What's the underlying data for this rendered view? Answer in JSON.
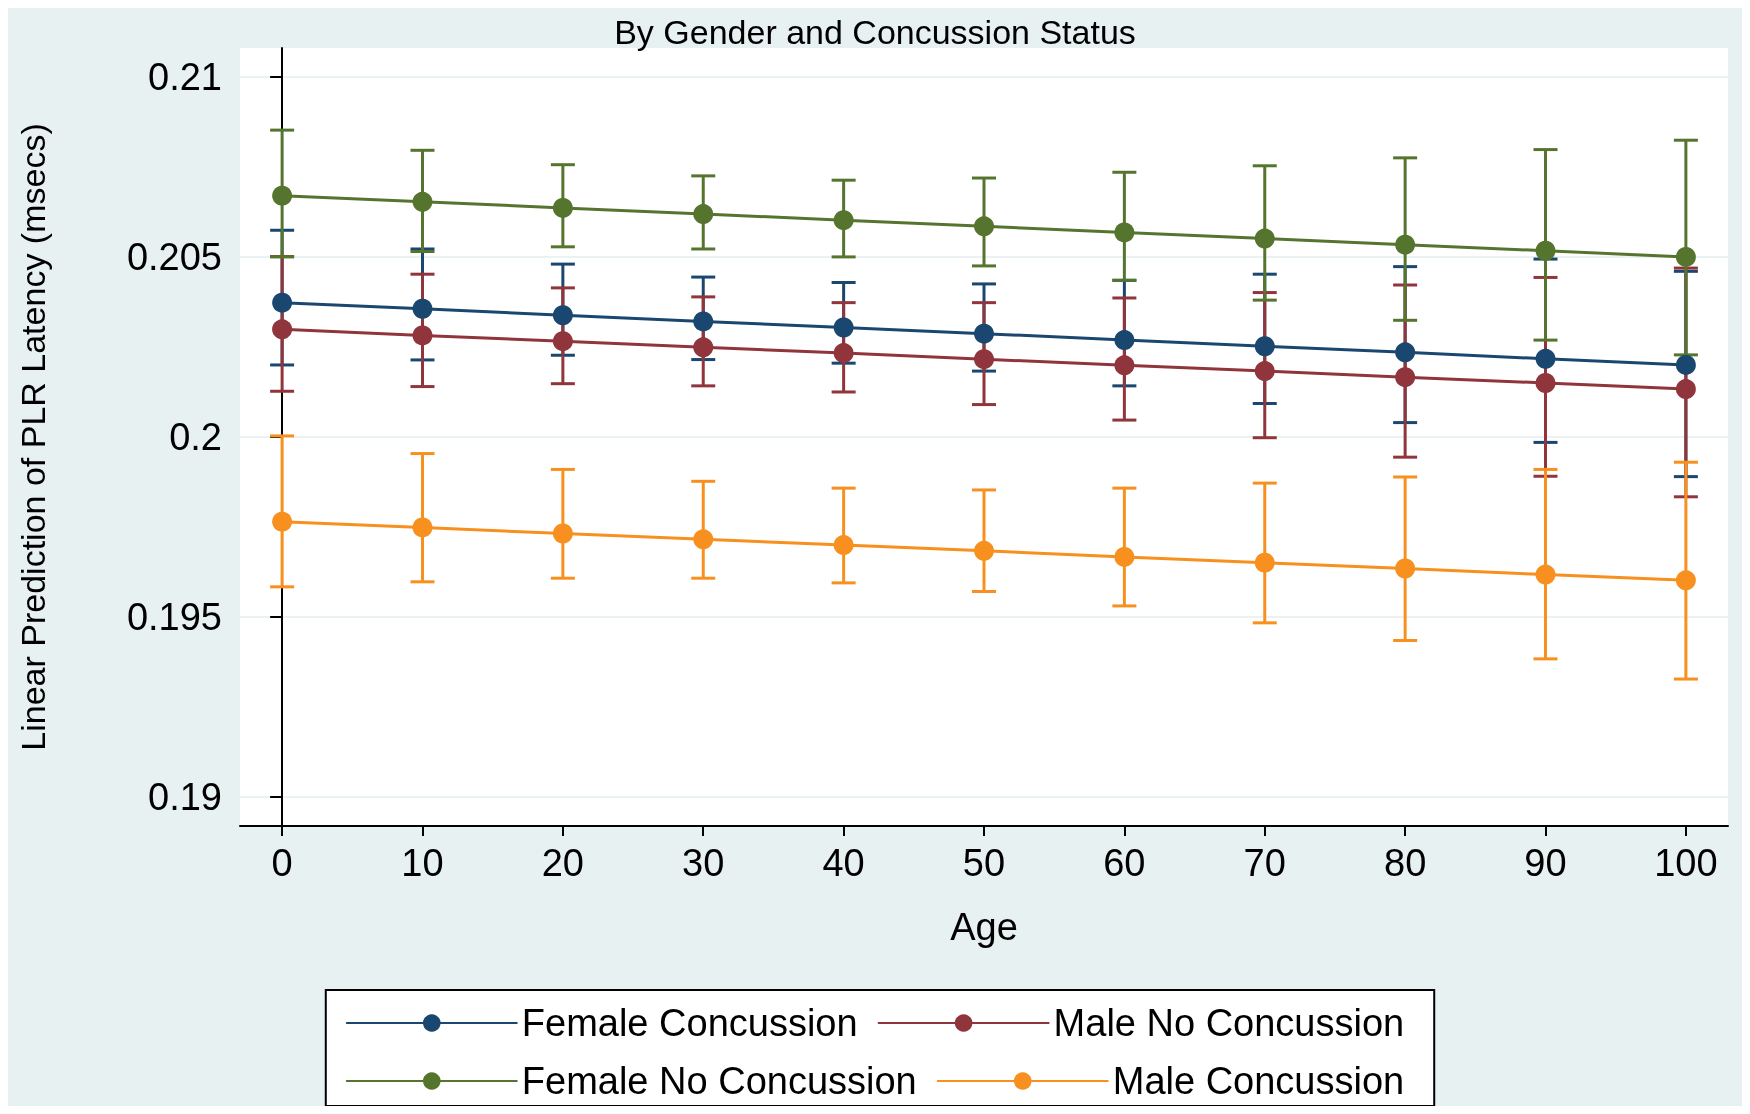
{
  "chart_data": {
    "type": "line",
    "title": "By Gender and Concussion Status",
    "xlabel": "Age",
    "ylabel": "Linear Prediction of PLR Latency (msecs)",
    "x": [
      0,
      10,
      20,
      30,
      40,
      50,
      60,
      70,
      80,
      90,
      100
    ],
    "xlim": [
      -3,
      103
    ],
    "xticks": [
      0,
      10,
      20,
      30,
      40,
      50,
      60,
      70,
      80,
      90,
      100
    ],
    "ylim": [
      0.1892,
      0.2108
    ],
    "yticks": [
      0.19,
      0.195,
      0.2,
      0.205,
      0.21
    ],
    "grid": "y",
    "legend": "bottom",
    "marker": "circle",
    "line_style": "solid",
    "series": [
      {
        "name": "Female Concussion",
        "color": "#1a476f",
        "values": [
          0.20373,
          0.20356,
          0.20338,
          0.20321,
          0.20304,
          0.20287,
          0.20269,
          0.20252,
          0.20235,
          0.20217,
          0.202
        ],
        "errors": [
          [
            0.202,
            0.20574
          ],
          [
            0.20214,
            0.20522
          ],
          [
            0.20227,
            0.2048
          ],
          [
            0.20215,
            0.20444
          ],
          [
            0.20205,
            0.20429
          ],
          [
            0.20183,
            0.20425
          ],
          [
            0.20142,
            0.20435
          ],
          [
            0.20093,
            0.20452
          ],
          [
            0.2004,
            0.20473
          ],
          [
            0.19985,
            0.20494
          ],
          [
            0.1989,
            0.2046
          ]
        ]
      },
      {
        "name": "Male No Concussion",
        "color": "#90353b",
        "values": [
          0.20299,
          0.20282,
          0.20266,
          0.20249,
          0.20233,
          0.20216,
          0.20199,
          0.20183,
          0.20166,
          0.2015,
          0.20133
        ],
        "errors": [
          [
            0.20127,
            0.20501
          ],
          [
            0.2014,
            0.20452
          ],
          [
            0.20148,
            0.20414
          ],
          [
            0.20142,
            0.20389
          ],
          [
            0.20125,
            0.20373
          ],
          [
            0.2009,
            0.20373
          ],
          [
            0.20047,
            0.20386
          ],
          [
            0.19998,
            0.20401
          ],
          [
            0.19944,
            0.20422
          ],
          [
            0.19891,
            0.20443
          ],
          [
            0.19834,
            0.20469
          ]
        ]
      },
      {
        "name": "Female No Concussion",
        "color": "#55752f",
        "values": [
          0.2067,
          0.20653,
          0.20636,
          0.20619,
          0.20602,
          0.20585,
          0.20568,
          0.20551,
          0.20534,
          0.20517,
          0.205
        ],
        "errors": [
          [
            0.205,
            0.20852
          ],
          [
            0.20515,
            0.20796
          ],
          [
            0.20528,
            0.20756
          ],
          [
            0.20522,
            0.20725
          ],
          [
            0.205,
            0.20713
          ],
          [
            0.20475,
            0.20719
          ],
          [
            0.20435,
            0.20735
          ],
          [
            0.2038,
            0.20753
          ],
          [
            0.20324,
            0.20775
          ],
          [
            0.20269,
            0.20798
          ],
          [
            0.20228,
            0.20824
          ]
        ]
      },
      {
        "name": "Male Concussion",
        "color": "#f7901e",
        "values": [
          0.19765,
          0.19749,
          0.19732,
          0.19716,
          0.197,
          0.19684,
          0.19667,
          0.19651,
          0.19635,
          0.19618,
          0.19602
        ],
        "errors": [
          [
            0.19584,
            0.20003
          ],
          [
            0.19598,
            0.19954
          ],
          [
            0.19608,
            0.1991
          ],
          [
            0.19608,
            0.19877
          ],
          [
            0.19595,
            0.19858
          ],
          [
            0.19571,
            0.19853
          ],
          [
            0.19531,
            0.19858
          ],
          [
            0.19484,
            0.19872
          ],
          [
            0.19435,
            0.19889
          ],
          [
            0.19384,
            0.1991
          ],
          [
            0.19328,
            0.1993
          ]
        ]
      }
    ]
  }
}
